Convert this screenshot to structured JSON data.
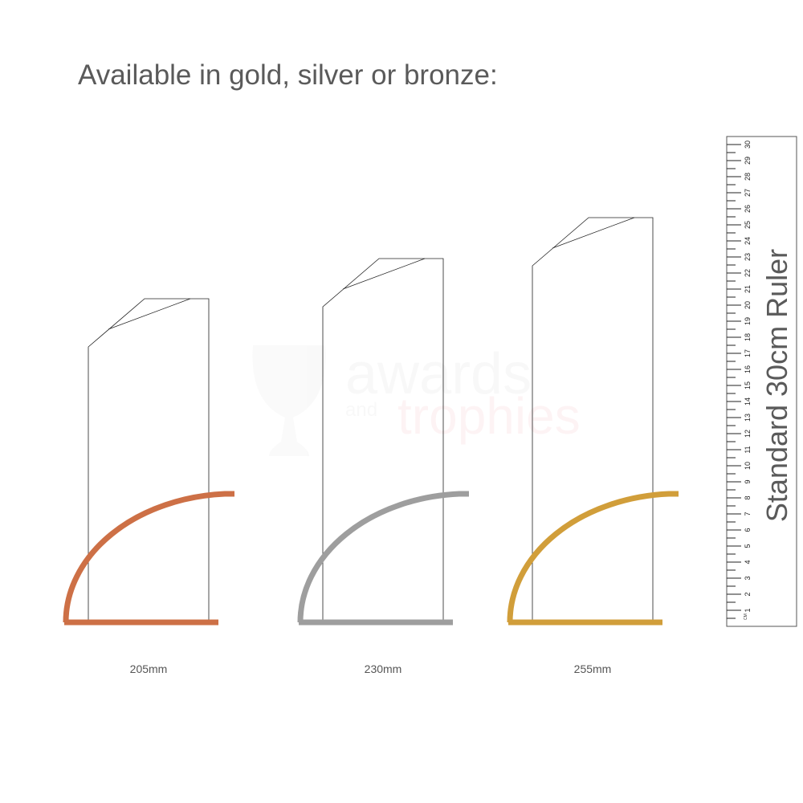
{
  "title": "Available in gold, silver or bronze:",
  "watermark": {
    "line1": "awards",
    "and": "and",
    "line2": "trophies"
  },
  "colors": {
    "bronze": "#cd7046",
    "silver": "#9e9e9e",
    "gold": "#d19e3a",
    "outline": "#222222",
    "text": "#5a5a5a"
  },
  "trophies": [
    {
      "finish": "bronze",
      "height_mm": 205,
      "label": "205mm"
    },
    {
      "finish": "silver",
      "height_mm": 230,
      "label": "230mm"
    },
    {
      "finish": "gold",
      "height_mm": 255,
      "label": "255mm"
    }
  ],
  "ruler": {
    "title": "Standard 30cm Ruler",
    "unit": "CM",
    "max_cm": 30
  }
}
